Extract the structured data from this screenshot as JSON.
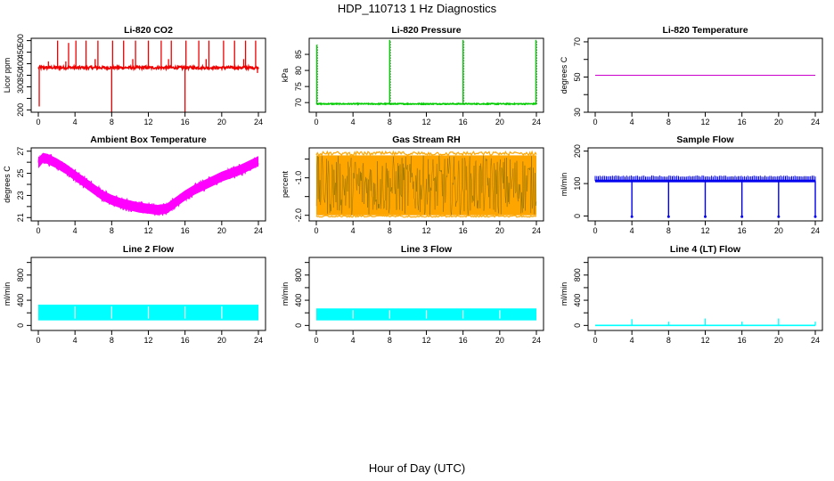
{
  "page": {
    "title": "HDP_110713  1 Hz Diagnostics",
    "xlabel": "Hour of Day (UTC)"
  },
  "chart_data": [
    {
      "type": "line",
      "title": "Li-820 CO2",
      "ylabel": "Licor ppm",
      "color": "#ee0000",
      "xlim": [
        0,
        24
      ],
      "x_ticks": [
        0,
        4,
        8,
        12,
        16,
        20,
        24
      ],
      "ylim": [
        190,
        510
      ],
      "y_ticks": [
        200,
        250,
        300,
        350,
        400,
        450,
        500
      ],
      "y_tick_labels": [
        "200",
        "",
        "300",
        "350",
        "400",
        "450",
        "500"
      ],
      "series": [
        {
          "base": 383,
          "noise": 6,
          "spikes": [
            [
              0.1,
              215
            ],
            [
              0.3,
              395
            ],
            [
              1.1,
              410
            ],
            [
              2.1,
              500
            ],
            [
              3.0,
              410
            ],
            [
              3.3,
              490
            ],
            [
              4.1,
              500
            ],
            [
              5.2,
              500
            ],
            [
              6.2,
              420
            ],
            [
              6.5,
              500
            ],
            [
              8.0,
              190
            ],
            [
              8.1,
              500
            ],
            [
              9.3,
              500
            ],
            [
              10.3,
              420
            ],
            [
              10.6,
              500
            ],
            [
              12.0,
              500
            ],
            [
              13.4,
              500
            ],
            [
              14.2,
              420
            ],
            [
              14.5,
              500
            ],
            [
              16.0,
              190
            ],
            [
              16.1,
              500
            ],
            [
              17.5,
              500
            ],
            [
              18.3,
              420
            ],
            [
              18.6,
              500
            ],
            [
              20.2,
              500
            ],
            [
              21.4,
              500
            ],
            [
              22.4,
              420
            ],
            [
              22.6,
              500
            ],
            [
              23.7,
              500
            ],
            [
              23.9,
              360
            ]
          ]
        }
      ]
    },
    {
      "type": "line",
      "title": "Li-820 Pressure",
      "ylabel": "kPa",
      "color": "#00cc00",
      "xlim": [
        0,
        24
      ],
      "x_ticks": [
        0,
        4,
        8,
        12,
        16,
        20,
        24
      ],
      "ylim": [
        67,
        90
      ],
      "y_ticks": [
        70,
        75,
        80,
        85
      ],
      "y_tick_labels": [
        "70",
        "75",
        "80",
        "85"
      ],
      "series": [
        {
          "base": 69.6,
          "noise": 0.15,
          "spikes": [
            [
              0.05,
              88
            ],
            [
              8.0,
              89.5
            ],
            [
              16.0,
              89.5
            ],
            [
              23.95,
              89.5
            ]
          ]
        }
      ]
    },
    {
      "type": "line",
      "title": "Li-820 Temperature",
      "ylabel": "degrees C",
      "color": "#cc00cc",
      "xlim": [
        0,
        24
      ],
      "x_ticks": [
        0,
        4,
        8,
        12,
        16,
        20,
        24
      ],
      "ylim": [
        30,
        72
      ],
      "y_ticks": [
        30,
        40,
        50,
        60,
        70
      ],
      "y_tick_labels": [
        "30",
        "",
        "50",
        "",
        "70"
      ],
      "series": [
        {
          "base": 51,
          "noise": 0,
          "spikes": []
        }
      ]
    },
    {
      "type": "line",
      "title": "Ambient Box Temperature",
      "ylabel": "degrees C",
      "color": "#ff00ff",
      "xlim": [
        0,
        24
      ],
      "x_ticks": [
        0,
        4,
        8,
        12,
        16,
        20,
        24
      ],
      "ylim": [
        20.7,
        27.3
      ],
      "y_ticks": [
        21,
        22,
        23,
        24,
        25,
        26,
        27
      ],
      "y_tick_labels": [
        "21",
        "",
        "23",
        "",
        "25",
        "",
        "27"
      ],
      "series": [
        {
          "band": 0.45,
          "points": [
            [
              0,
              25.9
            ],
            [
              0.5,
              26.4
            ],
            [
              1,
              26.3
            ],
            [
              2,
              25.9
            ],
            [
              3,
              25.4
            ],
            [
              4,
              24.8
            ],
            [
              5,
              24.2
            ],
            [
              6,
              23.6
            ],
            [
              7,
              23.0
            ],
            [
              8,
              22.6
            ],
            [
              9,
              22.3
            ],
            [
              10,
              22.1
            ],
            [
              11,
              21.9
            ],
            [
              12,
              21.8
            ],
            [
              13,
              21.7
            ],
            [
              14,
              21.8
            ],
            [
              15,
              22.4
            ],
            [
              16,
              23.0
            ],
            [
              17,
              23.5
            ],
            [
              18,
              23.9
            ],
            [
              19,
              24.3
            ],
            [
              20,
              24.7
            ],
            [
              21,
              25.0
            ],
            [
              22,
              25.3
            ],
            [
              23,
              25.7
            ],
            [
              24,
              26.1
            ]
          ]
        }
      ]
    },
    {
      "type": "scatter",
      "title": "Gas Stream RH",
      "ylabel": "percent",
      "color": "#ffa500",
      "marker_color": "#555500",
      "xlim": [
        0,
        24
      ],
      "x_ticks": [
        0,
        4,
        8,
        12,
        16,
        20,
        24
      ],
      "ylim": [
        -2.15,
        -0.2
      ],
      "y_ticks": [
        -2.0,
        -1.5,
        -1.0,
        -0.5
      ],
      "y_tick_labels": [
        "-2.0",
        "",
        "-1.0",
        ""
      ],
      "series": [
        {
          "low": -2.0,
          "high": -0.4,
          "low_edge": -2.05,
          "high_edge": -0.3
        }
      ]
    },
    {
      "type": "line",
      "title": "Sample Flow",
      "ylabel": "ml/min",
      "color": "#0000ee",
      "xlim": [
        0,
        24
      ],
      "x_ticks": [
        0,
        4,
        8,
        12,
        16,
        20,
        24
      ],
      "ylim": [
        -15,
        210
      ],
      "y_ticks": [
        0,
        100,
        200
      ],
      "y_tick_labels": [
        "0",
        "100",
        "200"
      ],
      "series": [
        {
          "base": 108,
          "noise": 3,
          "top": 125,
          "dips": [
            [
              4.0,
              -2
            ],
            [
              8.0,
              -2
            ],
            [
              12.0,
              -2
            ],
            [
              16.0,
              -2
            ],
            [
              20.0,
              -2
            ],
            [
              24.0,
              -2
            ]
          ]
        }
      ]
    },
    {
      "type": "area",
      "title": "Line 2 Flow",
      "ylabel": "ml/min",
      "color": "#00ffff",
      "xlim": [
        0,
        24
      ],
      "x_ticks": [
        0,
        4,
        8,
        12,
        16,
        20,
        24
      ],
      "ylim": [
        -80,
        1080
      ],
      "y_ticks": [
        0,
        200,
        400,
        600,
        800,
        1000
      ],
      "y_tick_labels": [
        "0",
        "",
        "400",
        "",
        "800",
        ""
      ],
      "series": [
        {
          "low": 80,
          "high": 330,
          "breaks": [
            4.0,
            8.0,
            12.0,
            16.0,
            20.0
          ]
        }
      ]
    },
    {
      "type": "area",
      "title": "Line 3 Flow",
      "ylabel": "ml/min",
      "color": "#00ffff",
      "xlim": [
        0,
        24
      ],
      "x_ticks": [
        0,
        4,
        8,
        12,
        16,
        20,
        24
      ],
      "ylim": [
        -80,
        1080
      ],
      "y_ticks": [
        0,
        200,
        400,
        600,
        800,
        1000
      ],
      "y_tick_labels": [
        "0",
        "",
        "400",
        "",
        "800",
        ""
      ],
      "series": [
        {
          "low": 80,
          "high": 270,
          "breaks": [
            4.0,
            8.0,
            12.0,
            16.0,
            20.0
          ]
        }
      ]
    },
    {
      "type": "line",
      "title": "Line 4 (LT) Flow",
      "ylabel": "ml/min",
      "color": "#00ffff",
      "xlim": [
        0,
        24
      ],
      "x_ticks": [
        0,
        4,
        8,
        12,
        16,
        20,
        24
      ],
      "ylim": [
        -80,
        1080
      ],
      "y_ticks": [
        0,
        200,
        400,
        600,
        800,
        1000
      ],
      "y_tick_labels": [
        "0",
        "",
        "400",
        "",
        "800",
        ""
      ],
      "series": [
        {
          "base": 0,
          "noise": 0,
          "spikes": [
            [
              4.0,
              100
            ],
            [
              8.0,
              60
            ],
            [
              12.0,
              110
            ],
            [
              16.0,
              60
            ],
            [
              20.0,
              110
            ],
            [
              24.0,
              60
            ]
          ]
        }
      ]
    }
  ]
}
